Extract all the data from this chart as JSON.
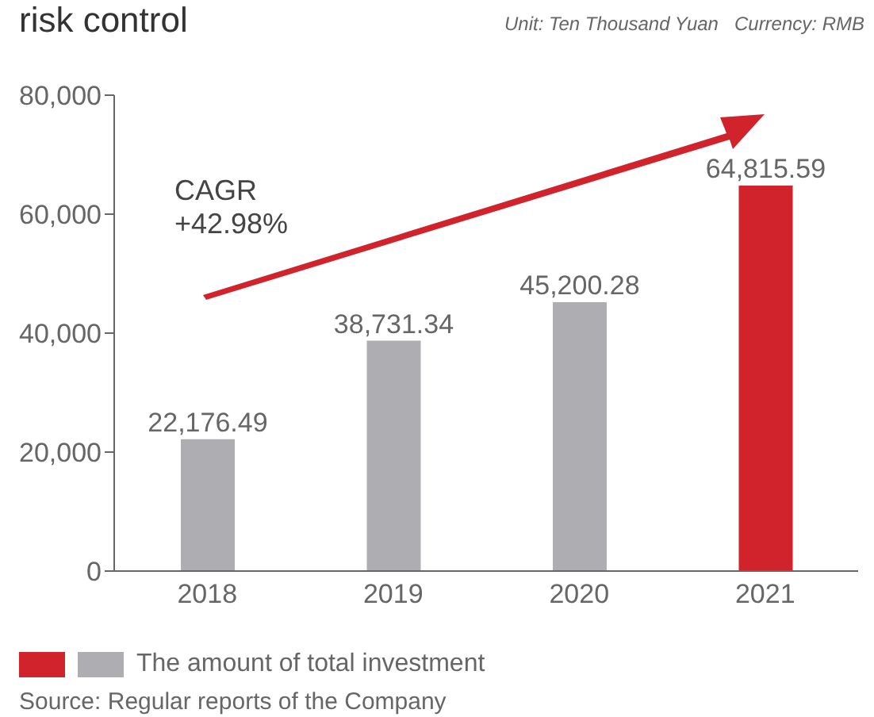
{
  "chart_data": {
    "type": "bar",
    "title": "risk control",
    "subtitle": "Unit: Ten Thousand Yuan   Currency: RMB",
    "categories": [
      "2018",
      "2019",
      "2020",
      "2021"
    ],
    "series": [
      {
        "name": "The amount of total investment",
        "values": [
          22176.49,
          38731.34,
          45200.28,
          64815.59
        ],
        "colors": [
          "#adadb2",
          "#adadb2",
          "#adadb2",
          "#d0232b"
        ]
      }
    ],
    "value_labels": [
      "22,176.49",
      "38,731.34",
      "45,200.28",
      "64,815.59"
    ],
    "ylim": [
      0,
      80000
    ],
    "yticks": [
      {
        "value": 0,
        "label": "0"
      },
      {
        "value": 20000,
        "label": "20,000"
      },
      {
        "value": 40000,
        "label": "40,000"
      },
      {
        "value": 60000,
        "label": "60,000"
      },
      {
        "value": 80000,
        "label": "80,000"
      }
    ],
    "annotations": [
      "CAGR\n+42.98%",
      "Source: Regular reports of the Company"
    ],
    "legend": "bottom",
    "grid": false
  }
}
